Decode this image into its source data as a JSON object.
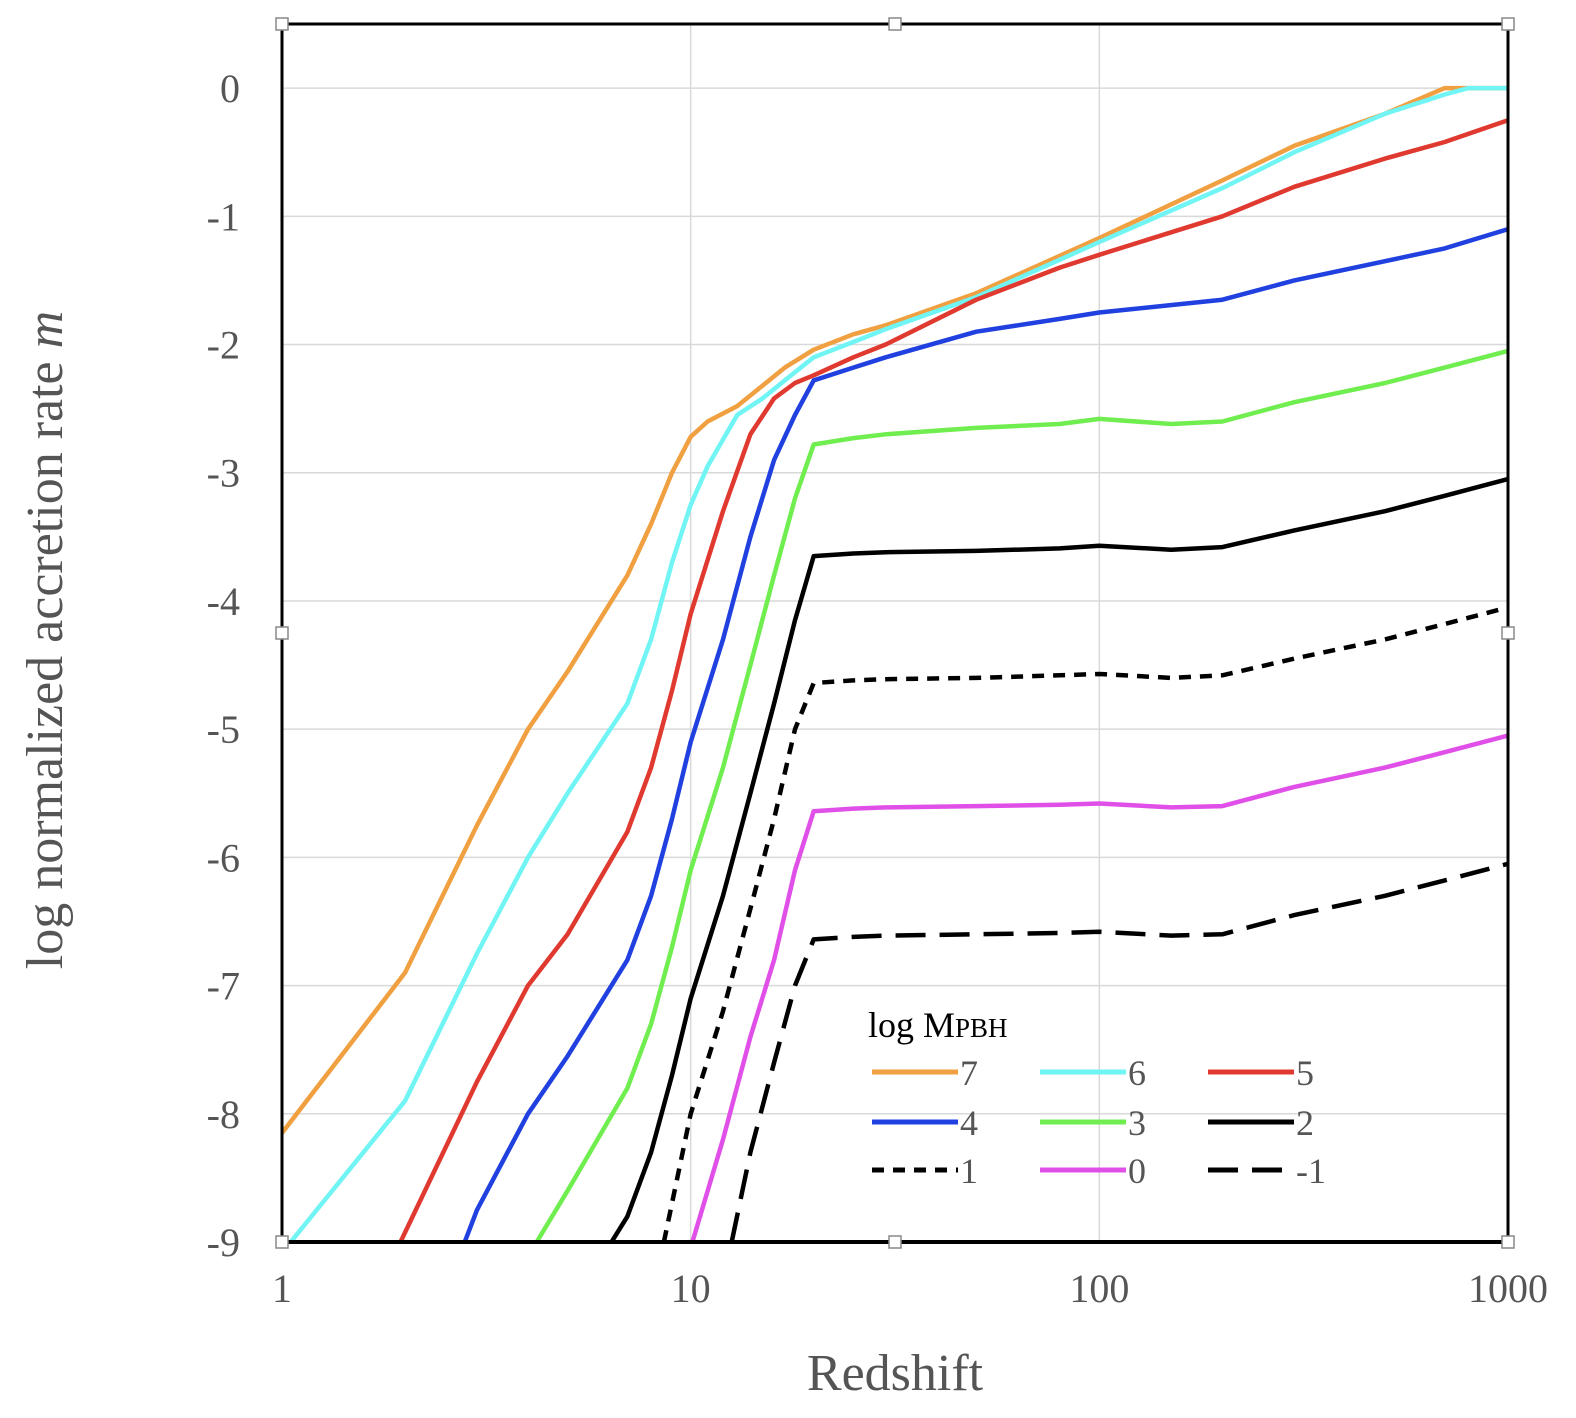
{
  "chart_data": {
    "type": "line",
    "title": "",
    "xlabel": "Redshift",
    "ylabel_text": "log normalized accretion rate ",
    "ylabel_symbol": "m",
    "ylabel_symbol_accent": "˙",
    "xscale": "log",
    "xlim": [
      1,
      1000
    ],
    "ylim": [
      -9,
      0.5
    ],
    "xticks": [
      1,
      10,
      100,
      1000
    ],
    "xtick_labels": [
      "1",
      "10",
      "100",
      "1000"
    ],
    "yticks": [
      0,
      -1,
      -2,
      -3,
      -4,
      -5,
      -6,
      -7,
      -8,
      -9
    ],
    "ytick_labels": [
      "0",
      "-1",
      "-2",
      "-3",
      "-4",
      "-5",
      "-6",
      "-7",
      "-8",
      "-9"
    ],
    "grid": true,
    "legend": {
      "title_main": "log M",
      "title_sub": "PBH",
      "placement": "lower-right"
    },
    "series": [
      {
        "name": "7",
        "color": "#F0A040",
        "dash": "solid",
        "x": [
          1,
          2,
          3,
          4,
          5,
          7,
          8,
          9,
          10,
          11,
          13,
          15,
          17,
          20,
          25,
          30,
          50,
          100,
          200,
          300,
          500,
          700,
          1000
        ],
        "y": [
          -8.15,
          -6.9,
          -5.75,
          -5.0,
          -4.55,
          -3.8,
          -3.4,
          -3.0,
          -2.72,
          -2.6,
          -2.48,
          -2.32,
          -2.18,
          -2.04,
          -1.92,
          -1.85,
          -1.6,
          -1.17,
          -0.72,
          -0.45,
          -0.2,
          0.0,
          0.0
        ]
      },
      {
        "name": "6",
        "color": "#70F4F4",
        "dash": "solid",
        "x": [
          1.05,
          2,
          3,
          4,
          5,
          7,
          8,
          9,
          10,
          11,
          13,
          15,
          17,
          20,
          25,
          30,
          50,
          100,
          200,
          300,
          500,
          700,
          800,
          1000
        ],
        "y": [
          -9.0,
          -7.9,
          -6.75,
          -6.0,
          -5.5,
          -4.8,
          -4.3,
          -3.7,
          -3.25,
          -2.95,
          -2.55,
          -2.42,
          -2.28,
          -2.1,
          -1.98,
          -1.88,
          -1.63,
          -1.2,
          -0.78,
          -0.5,
          -0.2,
          -0.05,
          0.0,
          0.0
        ]
      },
      {
        "name": "5",
        "color": "#E03A30",
        "dash": "solid",
        "x": [
          1.95,
          3,
          4,
          5,
          7,
          8,
          9,
          10,
          12,
          14,
          16,
          18,
          20,
          25,
          30,
          50,
          80,
          100,
          200,
          300,
          500,
          700,
          1000
        ],
        "y": [
          -9.0,
          -7.75,
          -7.0,
          -6.6,
          -5.8,
          -5.3,
          -4.7,
          -4.1,
          -3.3,
          -2.7,
          -2.42,
          -2.3,
          -2.24,
          -2.1,
          -2.0,
          -1.65,
          -1.4,
          -1.3,
          -1.0,
          -0.77,
          -0.55,
          -0.42,
          -0.25
        ]
      },
      {
        "name": "4",
        "color": "#2040E0",
        "dash": "solid",
        "x": [
          2.8,
          3,
          4,
          5,
          7,
          8,
          9,
          10,
          12,
          14,
          16,
          18,
          20,
          25,
          30,
          50,
          80,
          100,
          200,
          300,
          500,
          700,
          1000
        ],
        "y": [
          -9.0,
          -8.75,
          -8.0,
          -7.55,
          -6.8,
          -6.3,
          -5.7,
          -5.1,
          -4.3,
          -3.5,
          -2.9,
          -2.55,
          -2.28,
          -2.18,
          -2.1,
          -1.9,
          -1.8,
          -1.75,
          -1.65,
          -1.5,
          -1.35,
          -1.25,
          -1.1
        ]
      },
      {
        "name": "3",
        "color": "#70EE50",
        "dash": "solid",
        "x": [
          4.2,
          5,
          7,
          8,
          9,
          10,
          12,
          14,
          16,
          18,
          20,
          25,
          30,
          50,
          80,
          100,
          150,
          200,
          300,
          500,
          700,
          1000
        ],
        "y": [
          -9.0,
          -8.6,
          -7.8,
          -7.3,
          -6.7,
          -6.1,
          -5.3,
          -4.5,
          -3.8,
          -3.2,
          -2.78,
          -2.73,
          -2.7,
          -2.65,
          -2.62,
          -2.58,
          -2.62,
          -2.6,
          -2.45,
          -2.3,
          -2.18,
          -2.05
        ]
      },
      {
        "name": "2",
        "color": "#000000",
        "dash": "solid",
        "x": [
          6.4,
          7,
          8,
          9,
          10,
          12,
          14,
          16,
          18,
          20,
          25,
          30,
          50,
          80,
          100,
          150,
          200,
          300,
          500,
          700,
          1000
        ],
        "y": [
          -9.0,
          -8.8,
          -8.3,
          -7.7,
          -7.1,
          -6.3,
          -5.5,
          -4.8,
          -4.15,
          -3.65,
          -3.63,
          -3.62,
          -3.61,
          -3.59,
          -3.57,
          -3.6,
          -3.58,
          -3.45,
          -3.3,
          -3.18,
          -3.05
        ]
      },
      {
        "name": "1",
        "color": "#000000",
        "dash": "12,9",
        "x": [
          8.6,
          10,
          12,
          14,
          16,
          18,
          20,
          25,
          30,
          50,
          80,
          100,
          150,
          200,
          300,
          500,
          700,
          1000
        ],
        "y": [
          -9.0,
          -8.0,
          -7.2,
          -6.4,
          -5.7,
          -5.0,
          -4.64,
          -4.62,
          -4.61,
          -4.6,
          -4.58,
          -4.57,
          -4.6,
          -4.58,
          -4.45,
          -4.3,
          -4.18,
          -4.05
        ]
      },
      {
        "name": "0",
        "color": "#E050E8",
        "dash": "solid",
        "x": [
          10.1,
          12,
          14,
          16,
          18,
          20,
          25,
          30,
          50,
          80,
          100,
          150,
          200,
          300,
          500,
          700,
          1000
        ],
        "y": [
          -9.0,
          -8.2,
          -7.4,
          -6.8,
          -6.1,
          -5.64,
          -5.62,
          -5.61,
          -5.6,
          -5.59,
          -5.58,
          -5.61,
          -5.6,
          -5.45,
          -5.3,
          -5.18,
          -5.05
        ]
      },
      {
        "name": "-1",
        "color": "#000000",
        "dash": "30,14",
        "x": [
          12.6,
          14,
          16,
          18,
          20,
          25,
          30,
          50,
          80,
          100,
          150,
          200,
          300,
          500,
          700,
          1000
        ],
        "y": [
          -9.0,
          -8.3,
          -7.6,
          -7.0,
          -6.64,
          -6.62,
          -6.61,
          -6.6,
          -6.59,
          -6.58,
          -6.61,
          -6.6,
          -6.45,
          -6.3,
          -6.18,
          -6.05
        ]
      }
    ]
  }
}
